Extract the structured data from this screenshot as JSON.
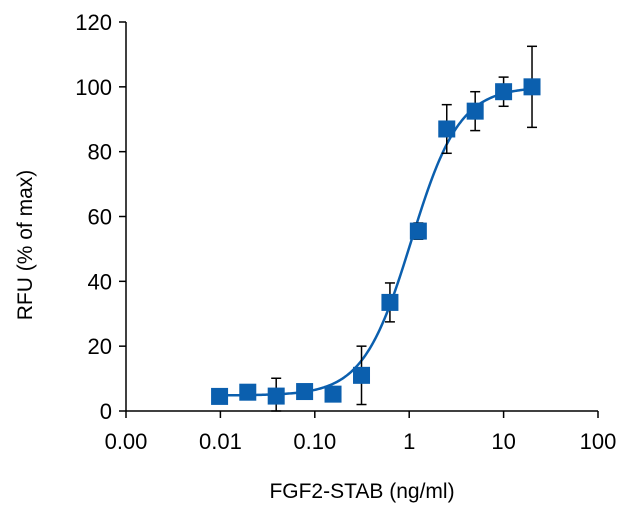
{
  "chart_data": {
    "type": "scatter",
    "title": "",
    "xlabel": "FGF2-STAB (ng/ml)",
    "ylabel": "RFU (% of max)",
    "x_scale": "log",
    "xlim": [
      0.001,
      100
    ],
    "ylim": [
      0,
      120
    ],
    "x_tick_labels": [
      "0.00",
      "0.01",
      "0.10",
      "1",
      "10",
      "100"
    ],
    "x_tick_values": [
      0.001,
      0.01,
      0.1,
      1,
      10,
      100
    ],
    "y_ticks": [
      0,
      20,
      40,
      60,
      80,
      100,
      120
    ],
    "grid": false,
    "legend": "none",
    "series_color": "#0b5fae",
    "points": [
      {
        "x": 0.0098,
        "y": 4.5,
        "err": 0
      },
      {
        "x": 0.0195,
        "y": 5.8,
        "err": 0
      },
      {
        "x": 0.039,
        "y": 4.6,
        "err": 5.5
      },
      {
        "x": 0.078,
        "y": 6.0,
        "err": 0
      },
      {
        "x": 0.156,
        "y": 5.2,
        "err": 0
      },
      {
        "x": 0.3125,
        "y": 11.0,
        "err": 9.0
      },
      {
        "x": 0.625,
        "y": 33.5,
        "err": 6.0
      },
      {
        "x": 1.25,
        "y": 55.5,
        "err": 2.5
      },
      {
        "x": 2.5,
        "y": 87.0,
        "err": 7.5
      },
      {
        "x": 5.0,
        "y": 92.5,
        "err": 6.0
      },
      {
        "x": 10.0,
        "y": 98.5,
        "err": 4.5
      },
      {
        "x": 20.0,
        "y": 100.0,
        "err": 12.5
      }
    ],
    "fit_curve": {
      "bottom": 4.8,
      "top": 100.0,
      "ec50": 1.05,
      "hill": 1.7
    }
  }
}
